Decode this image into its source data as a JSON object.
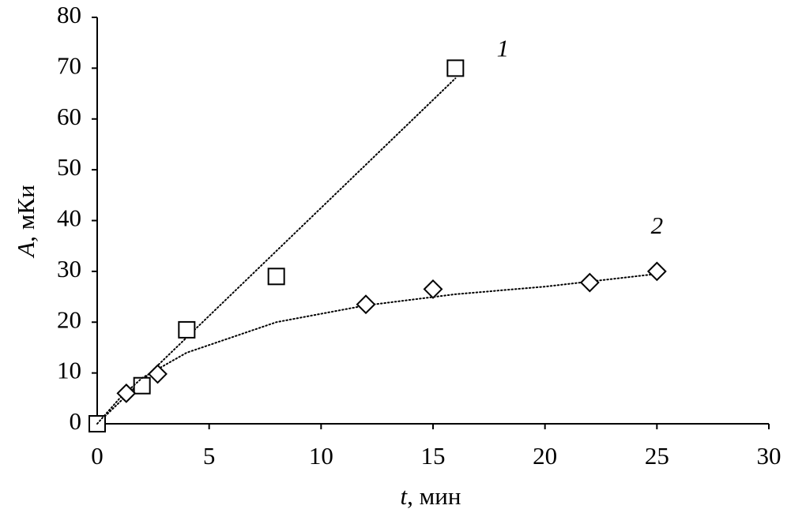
{
  "chart_data": {
    "type": "scatter",
    "xlabel_var": "t",
    "xlabel_unit": ", мин",
    "ylabel_var": "A",
    "ylabel_unit": ", мКи",
    "xlim": [
      0,
      30
    ],
    "xticks": [
      0,
      5,
      10,
      15,
      20,
      25,
      30
    ],
    "ylim": [
      0,
      80
    ],
    "yticks": [
      0,
      10,
      20,
      30,
      40,
      50,
      60,
      70,
      80
    ],
    "series": [
      {
        "name": "1",
        "marker": "square",
        "color": "#000000",
        "x": [
          0,
          2,
          4,
          8,
          16
        ],
        "values": [
          0,
          7.5,
          18.5,
          29,
          70
        ],
        "trend_x": [
          0,
          16
        ],
        "trend_values": [
          0,
          68
        ]
      },
      {
        "name": "2",
        "marker": "diamond",
        "color": "#000000",
        "x": [
          1.3,
          2.7,
          12,
          15,
          22,
          25
        ],
        "values": [
          6,
          9.8,
          23.5,
          26.5,
          27.8,
          30
        ],
        "trend_x": [
          0,
          1,
          2,
          4,
          8,
          12,
          16,
          20,
          25
        ],
        "trend_values": [
          0,
          5,
          9,
          14,
          20,
          23.3,
          25.5,
          27,
          29.5
        ]
      }
    ]
  }
}
